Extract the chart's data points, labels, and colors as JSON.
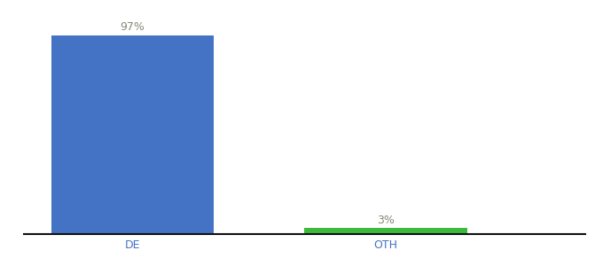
{
  "categories": [
    "DE",
    "OTH"
  ],
  "values": [
    97,
    3
  ],
  "bar_colors": [
    "#4472c4",
    "#3dba3d"
  ],
  "value_labels": [
    "97%",
    "3%"
  ],
  "label_color": "#888877",
  "background_color": "#ffffff",
  "axis_line_color": "#111111",
  "ylim": [
    0,
    105
  ],
  "bar_width": 0.45,
  "label_fontsize": 9,
  "tick_fontsize": 9,
  "tick_color": "#4472c4",
  "x_positions": [
    0.3,
    1.0
  ]
}
